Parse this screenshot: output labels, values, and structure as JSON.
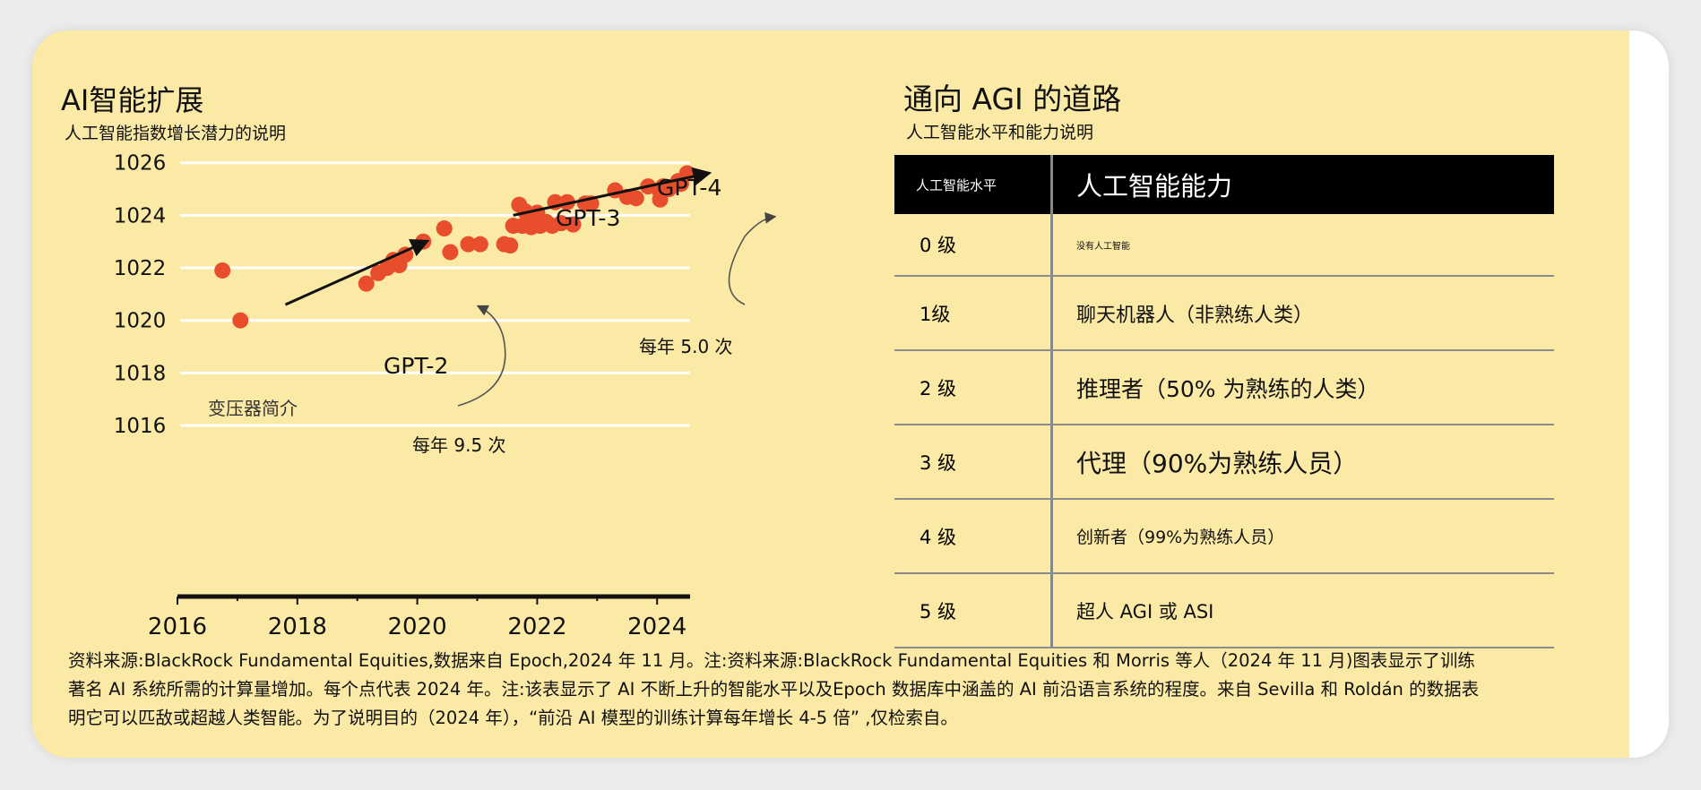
{
  "left_panel": {
    "title": "AI智能扩展",
    "subtitle": "人工智能指数增长潜力的说明"
  },
  "right_panel": {
    "title": "通向 AGI 的道路",
    "subtitle": "人工智能水平和能力说明"
  },
  "chart_data": {
    "type": "scatter",
    "x_ticks": [
      "2016",
      "2018",
      "2020",
      "2022",
      "2024"
    ],
    "y_ticks": [
      "1026",
      "1024",
      "1022",
      "1020",
      "1018",
      "1016"
    ],
    "xlim": [
      2016,
      2024.55
    ],
    "ylim": [
      1014.5,
      1026.4
    ],
    "grid": true,
    "points": [
      [
        2016.75,
        1021.9
      ],
      [
        2017.05,
        1020.0
      ],
      [
        2019.15,
        1021.4
      ],
      [
        2019.35,
        1021.8
      ],
      [
        2019.5,
        1022.0
      ],
      [
        2019.6,
        1022.3
      ],
      [
        2019.7,
        1022.1
      ],
      [
        2019.8,
        1022.5
      ],
      [
        2020.1,
        1023.0
      ],
      [
        2020.45,
        1023.5
      ],
      [
        2020.55,
        1022.6
      ],
      [
        2020.85,
        1022.9
      ],
      [
        2021.05,
        1022.9
      ],
      [
        2021.45,
        1022.9
      ],
      [
        2021.55,
        1022.85
      ],
      [
        2021.6,
        1023.6
      ],
      [
        2021.7,
        1024.4
      ],
      [
        2021.75,
        1023.6
      ],
      [
        2021.8,
        1024.15
      ],
      [
        2021.9,
        1023.55
      ],
      [
        2021.95,
        1023.85
      ],
      [
        2022.0,
        1024.1
      ],
      [
        2022.05,
        1023.6
      ],
      [
        2022.15,
        1023.75
      ],
      [
        2022.25,
        1023.6
      ],
      [
        2022.3,
        1024.5
      ],
      [
        2022.4,
        1023.7
      ],
      [
        2022.5,
        1024.5
      ],
      [
        2022.6,
        1023.65
      ],
      [
        2022.8,
        1024.45
      ],
      [
        2022.9,
        1024.45
      ],
      [
        2023.3,
        1024.95
      ],
      [
        2023.5,
        1024.7
      ],
      [
        2023.65,
        1024.65
      ],
      [
        2023.85,
        1025.1
      ],
      [
        2024.05,
        1024.9
      ],
      [
        2024.1,
        1025.1
      ],
      [
        2024.05,
        1024.6
      ],
      [
        2024.2,
        1025.0
      ],
      [
        2024.35,
        1025.3
      ],
      [
        2024.4,
        1025.2
      ],
      [
        2024.5,
        1025.6
      ]
    ],
    "annotations": {
      "transformer": "变压器简介",
      "gpt2": "GPT-2",
      "gpt3": "GPT-3",
      "gpt4": "GPT-4",
      "rate1": "每年 9.5 次",
      "rate2": "每年 5.0 次"
    },
    "trend_lines": [
      {
        "from": [
          2017.8,
          1020.6
        ],
        "to": [
          2020.15,
          1023.0
        ]
      },
      {
        "from": [
          2021.6,
          1024.0
        ],
        "to": [
          2024.85,
          1025.6
        ]
      }
    ],
    "colors": {
      "point": "#e84e2c",
      "grid": "#ffffff",
      "axis": "#111111"
    }
  },
  "level_table": {
    "header": {
      "level": "人工智能水平",
      "ability": "人工智能能力"
    },
    "rows": [
      {
        "level": "0 级",
        "ability": "没有人工智能"
      },
      {
        "level": "1级",
        "ability": "聊天机器人（非熟练人类）"
      },
      {
        "level": "2 级",
        "ability": "推理者（50% 为熟练的人类）"
      },
      {
        "level": "3 级",
        "ability": "代理（90%为熟练人员）"
      },
      {
        "level": "4 级",
        "ability": "创新者（99%为熟练人员）"
      },
      {
        "level": "5 级",
        "ability": "超人 AGI 或 ASI"
      }
    ]
  },
  "footnote": {
    "line1": "资料来源:BlackRock Fundamental Equities,数据来自 Epoch,2024 年 11 月。注:资料来源:BlackRock Fundamental Equities 和 Morris 等人（2024 年 11 月)图表显示了训练",
    "line2": "著名 AI 系统所需的计算量增加。每个点代表 2024 年。注:该表显示了 AI 不断上升的智能水平以及Epoch 数据库中涵盖的 AI 前沿语言系统的程度。来自 Sevilla 和 Roldán 的数据表",
    "line3": "明它可以匹敌或超越人类智能。为了说明目的（2024 年），“前沿 AI 模型的训练计算每年增长 4-5 倍” ,仅检索自。"
  },
  "colors": {
    "card_bg": "#fbe9a6",
    "point": "#e84e2c"
  }
}
